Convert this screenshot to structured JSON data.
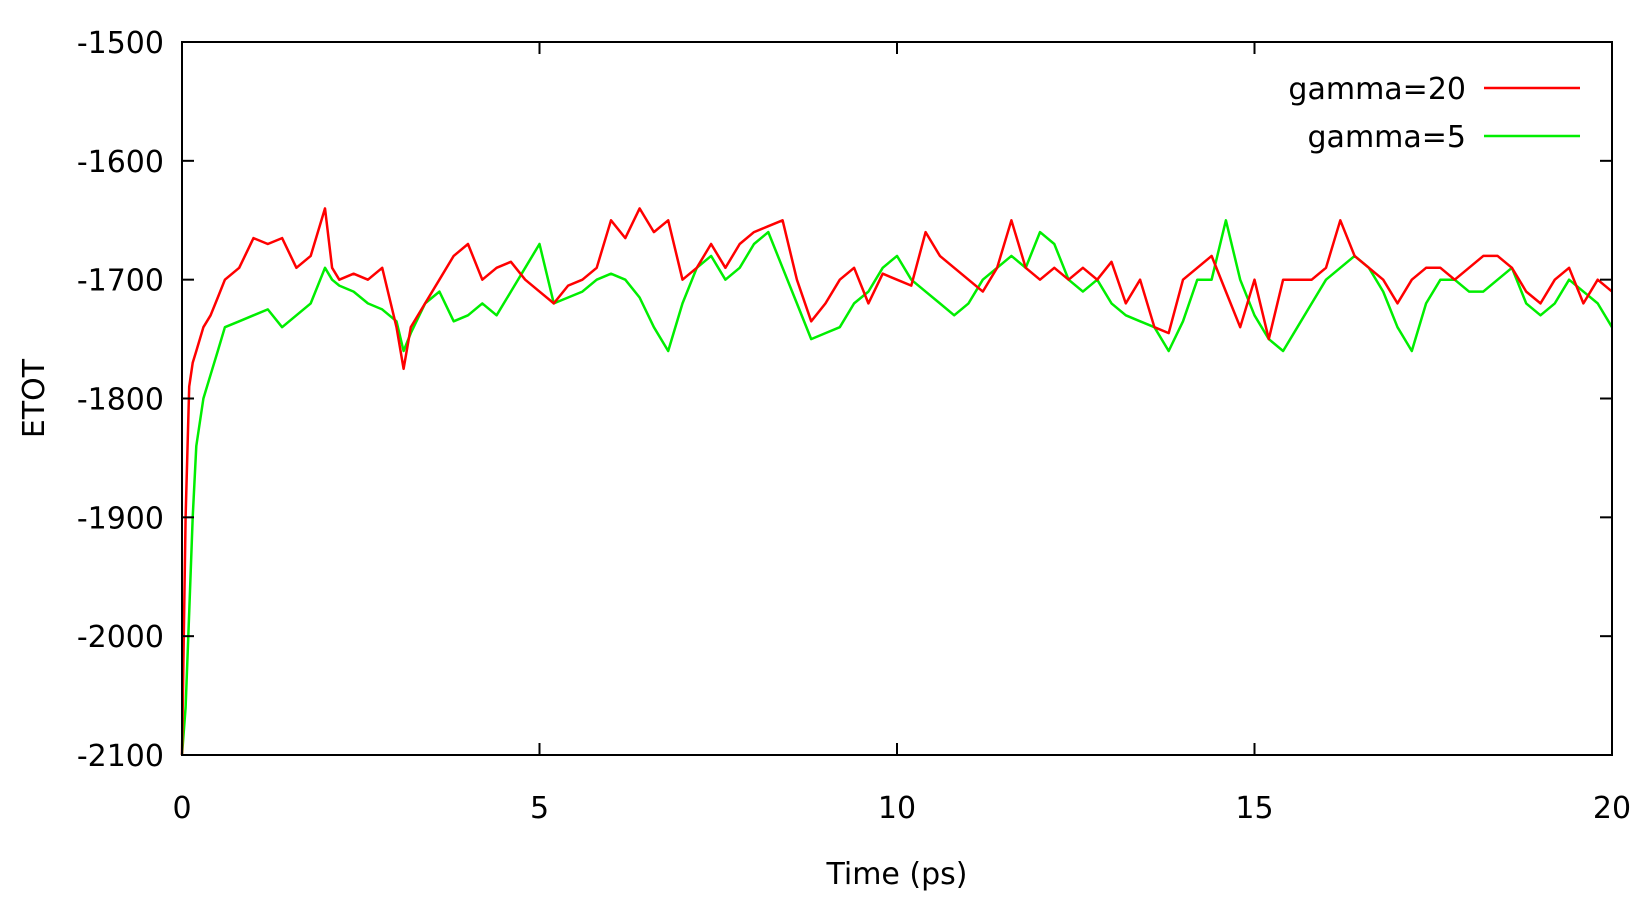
{
  "chart_data": {
    "type": "line",
    "xlabel": "Time (ps)",
    "ylabel": "ETOT",
    "xlim": [
      0,
      20
    ],
    "ylim": [
      -2100,
      -1500
    ],
    "xticks": [
      0,
      5,
      10,
      15,
      20
    ],
    "xtick_labels": [
      "0",
      "5",
      "10",
      "15",
      "20"
    ],
    "yticks": [
      -2100,
      -2000,
      -1900,
      -1800,
      -1700,
      -1600,
      -1500
    ],
    "ytick_labels": [
      "-2100",
      "-2000",
      "-1900",
      "-1800",
      "-1700",
      "-1600",
      "-1500"
    ],
    "grid": false,
    "legend_position": "top-right",
    "series": [
      {
        "name": "gamma=20",
        "color": "#ff0000",
        "x": [
          0,
          0.05,
          0.1,
          0.15,
          0.2,
          0.3,
          0.4,
          0.5,
          0.6,
          0.8,
          1.0,
          1.2,
          1.4,
          1.6,
          1.8,
          2.0,
          2.1,
          2.2,
          2.4,
          2.6,
          2.8,
          3.0,
          3.1,
          3.2,
          3.4,
          3.6,
          3.8,
          4.0,
          4.2,
          4.4,
          4.6,
          4.8,
          5.0,
          5.2,
          5.4,
          5.6,
          5.8,
          6.0,
          6.2,
          6.4,
          6.6,
          6.8,
          7.0,
          7.2,
          7.4,
          7.6,
          7.8,
          8.0,
          8.2,
          8.4,
          8.6,
          8.8,
          9.0,
          9.2,
          9.4,
          9.6,
          9.8,
          10.0,
          10.2,
          10.4,
          10.6,
          10.8,
          11.0,
          11.2,
          11.4,
          11.6,
          11.8,
          12.0,
          12.2,
          12.4,
          12.6,
          12.8,
          13.0,
          13.2,
          13.4,
          13.6,
          13.8,
          14.0,
          14.2,
          14.4,
          14.6,
          14.8,
          15.0,
          15.2,
          15.4,
          15.6,
          15.8,
          16.0,
          16.2,
          16.4,
          16.6,
          16.8,
          17.0,
          17.2,
          17.4,
          17.6,
          17.8,
          18.0,
          18.2,
          18.4,
          18.6,
          18.8,
          19.0,
          19.2,
          19.4,
          19.6,
          19.8,
          20.0
        ],
        "values": [
          -2100,
          -1900,
          -1790,
          -1770,
          -1760,
          -1740,
          -1730,
          -1715,
          -1700,
          -1690,
          -1665,
          -1670,
          -1665,
          -1690,
          -1680,
          -1640,
          -1690,
          -1700,
          -1695,
          -1700,
          -1690,
          -1740,
          -1775,
          -1740,
          -1720,
          -1700,
          -1680,
          -1670,
          -1700,
          -1690,
          -1685,
          -1700,
          -1710,
          -1720,
          -1705,
          -1700,
          -1690,
          -1650,
          -1665,
          -1640,
          -1660,
          -1650,
          -1700,
          -1690,
          -1670,
          -1690,
          -1670,
          -1660,
          -1655,
          -1650,
          -1700,
          -1735,
          -1720,
          -1700,
          -1690,
          -1720,
          -1695,
          -1700,
          -1705,
          -1660,
          -1680,
          -1690,
          -1700,
          -1710,
          -1690,
          -1650,
          -1690,
          -1700,
          -1690,
          -1700,
          -1690,
          -1700,
          -1685,
          -1720,
          -1700,
          -1740,
          -1745,
          -1700,
          -1690,
          -1680,
          -1710,
          -1740,
          -1700,
          -1750,
          -1700,
          -1700,
          -1700,
          -1690,
          -1650,
          -1680,
          -1690,
          -1700,
          -1720,
          -1700,
          -1690,
          -1690,
          -1700,
          -1690,
          -1680,
          -1680,
          -1690,
          -1710,
          -1720,
          -1700,
          -1690,
          -1720,
          -1700,
          -1710
        ]
      },
      {
        "name": "gamma=5",
        "color": "#00ee00",
        "x": [
          0,
          0.05,
          0.1,
          0.15,
          0.2,
          0.3,
          0.4,
          0.5,
          0.6,
          0.8,
          1.0,
          1.2,
          1.4,
          1.6,
          1.8,
          2.0,
          2.1,
          2.2,
          2.4,
          2.6,
          2.8,
          3.0,
          3.1,
          3.2,
          3.4,
          3.6,
          3.8,
          4.0,
          4.2,
          4.4,
          4.6,
          4.8,
          5.0,
          5.2,
          5.4,
          5.6,
          5.8,
          6.0,
          6.2,
          6.4,
          6.6,
          6.8,
          7.0,
          7.2,
          7.4,
          7.6,
          7.8,
          8.0,
          8.2,
          8.4,
          8.6,
          8.8,
          9.0,
          9.2,
          9.4,
          9.6,
          9.8,
          10.0,
          10.2,
          10.4,
          10.6,
          10.8,
          11.0,
          11.2,
          11.4,
          11.6,
          11.8,
          12.0,
          12.2,
          12.4,
          12.6,
          12.8,
          13.0,
          13.2,
          13.4,
          13.6,
          13.8,
          14.0,
          14.2,
          14.4,
          14.6,
          14.8,
          15.0,
          15.2,
          15.4,
          15.6,
          15.8,
          16.0,
          16.2,
          16.4,
          16.6,
          16.8,
          17.0,
          17.2,
          17.4,
          17.6,
          17.8,
          18.0,
          18.2,
          18.4,
          18.6,
          18.8,
          19.0,
          19.2,
          19.4,
          19.6,
          19.8,
          20.0
        ],
        "values": [
          -2100,
          -2060,
          -1980,
          -1900,
          -1840,
          -1800,
          -1780,
          -1760,
          -1740,
          -1735,
          -1730,
          -1725,
          -1740,
          -1730,
          -1720,
          -1690,
          -1700,
          -1705,
          -1710,
          -1720,
          -1725,
          -1735,
          -1760,
          -1745,
          -1720,
          -1710,
          -1735,
          -1730,
          -1720,
          -1730,
          -1710,
          -1690,
          -1670,
          -1720,
          -1715,
          -1710,
          -1700,
          -1695,
          -1700,
          -1715,
          -1740,
          -1760,
          -1720,
          -1690,
          -1680,
          -1700,
          -1690,
          -1670,
          -1660,
          -1690,
          -1720,
          -1750,
          -1745,
          -1740,
          -1720,
          -1710,
          -1690,
          -1680,
          -1700,
          -1710,
          -1720,
          -1730,
          -1720,
          -1700,
          -1690,
          -1680,
          -1690,
          -1660,
          -1670,
          -1700,
          -1710,
          -1700,
          -1720,
          -1730,
          -1735,
          -1740,
          -1760,
          -1735,
          -1700,
          -1700,
          -1650,
          -1700,
          -1730,
          -1750,
          -1760,
          -1740,
          -1720,
          -1700,
          -1690,
          -1680,
          -1690,
          -1710,
          -1740,
          -1760,
          -1720,
          -1700,
          -1700,
          -1710,
          -1710,
          -1700,
          -1690,
          -1720,
          -1730,
          -1720,
          -1700,
          -1710,
          -1720,
          -1740
        ]
      }
    ]
  }
}
